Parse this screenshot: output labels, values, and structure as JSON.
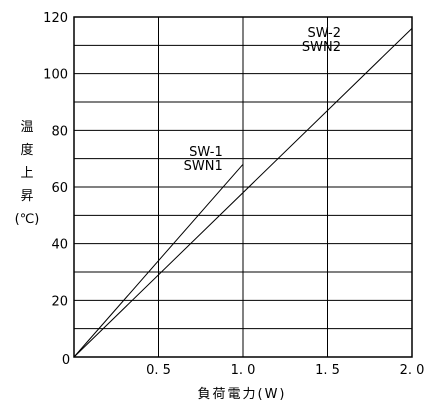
{
  "chart_data": {
    "type": "line",
    "xlabel": "負荷電力(W)",
    "ylabel_lines": [
      "温",
      "度",
      "上",
      "昇"
    ],
    "ylabel_unit": "(℃)",
    "xlim": [
      0,
      2.0
    ],
    "ylim": [
      0,
      120
    ],
    "x_ticks": [
      {
        "value": 0.5,
        "label": "0. 5"
      },
      {
        "value": 1.0,
        "label": "1. 0"
      },
      {
        "value": 1.5,
        "label": "1. 5"
      },
      {
        "value": 2.0,
        "label": "2. 0"
      }
    ],
    "origin_label": "0",
    "y_ticks": [
      {
        "value": 20,
        "label": "20"
      },
      {
        "value": 40,
        "label": "40"
      },
      {
        "value": 60,
        "label": "60"
      },
      {
        "value": 80,
        "label": "80"
      },
      {
        "value": 100,
        "label": "100"
      },
      {
        "value": 120,
        "label": "120"
      }
    ],
    "x_minor_grid": [
      0.5,
      1.0,
      1.5
    ],
    "y_minor_grid": [
      10,
      20,
      30,
      40,
      50,
      60,
      70,
      80,
      90,
      100,
      110
    ],
    "grid": true,
    "series": [
      {
        "label_lines": [
          "SW-1",
          "SWN1"
        ],
        "x": [
          0,
          1.0
        ],
        "y": [
          0,
          68
        ],
        "label_at": [
          0.88,
          71
        ]
      },
      {
        "label_lines": [
          "SW-2",
          "SWN2"
        ],
        "x": [
          0,
          2.0
        ],
        "y": [
          0,
          116
        ],
        "label_at": [
          1.58,
          113
        ]
      }
    ]
  }
}
